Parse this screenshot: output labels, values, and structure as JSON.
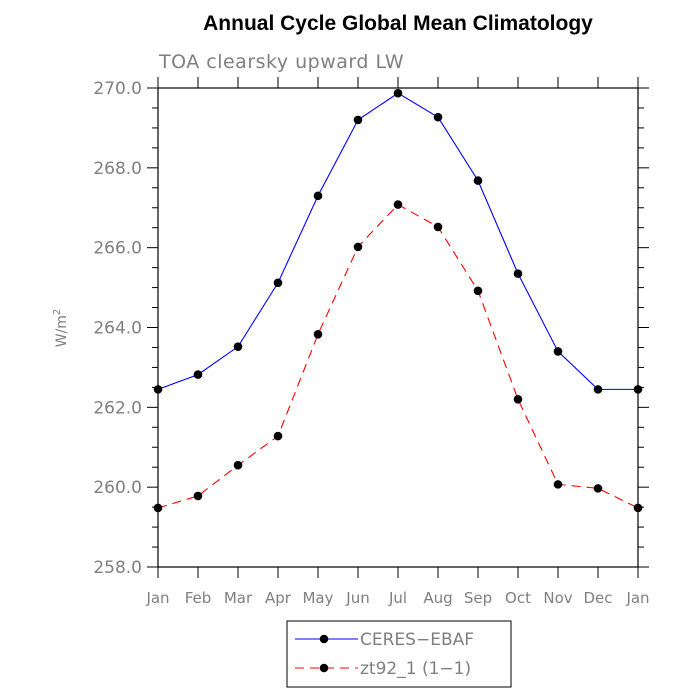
{
  "chart_data": {
    "type": "line",
    "title": "Annual Cycle Global Mean Climatology",
    "subtitle": "TOA clearsky upward LW",
    "ylabel": "W/m",
    "ylabel_sup": "2",
    "ylim": [
      258.0,
      270.0
    ],
    "yticks": [
      "258.0",
      "260.0",
      "262.0",
      "264.0",
      "266.0",
      "268.0",
      "270.0"
    ],
    "categories": [
      "Jan",
      "Feb",
      "Mar",
      "Apr",
      "May",
      "Jun",
      "Jul",
      "Aug",
      "Sep",
      "Oct",
      "Nov",
      "Dec",
      "Jan"
    ],
    "legend_position": "bottom-center",
    "series": [
      {
        "name": "CERES−EBAF",
        "color": "#0000ff",
        "dash": "solid",
        "marker": "circle",
        "values": [
          262.45,
          262.82,
          263.52,
          265.12,
          267.3,
          269.2,
          269.87,
          269.27,
          267.68,
          265.35,
          263.4,
          262.45,
          262.45
        ]
      },
      {
        "name": "zt92_1 (1−1)",
        "color": "#ff0000",
        "dash": "dashed",
        "marker": "circle",
        "values": [
          259.48,
          259.78,
          260.55,
          261.28,
          263.83,
          266.02,
          267.08,
          266.52,
          264.92,
          262.2,
          260.07,
          259.97,
          259.48
        ]
      }
    ]
  }
}
